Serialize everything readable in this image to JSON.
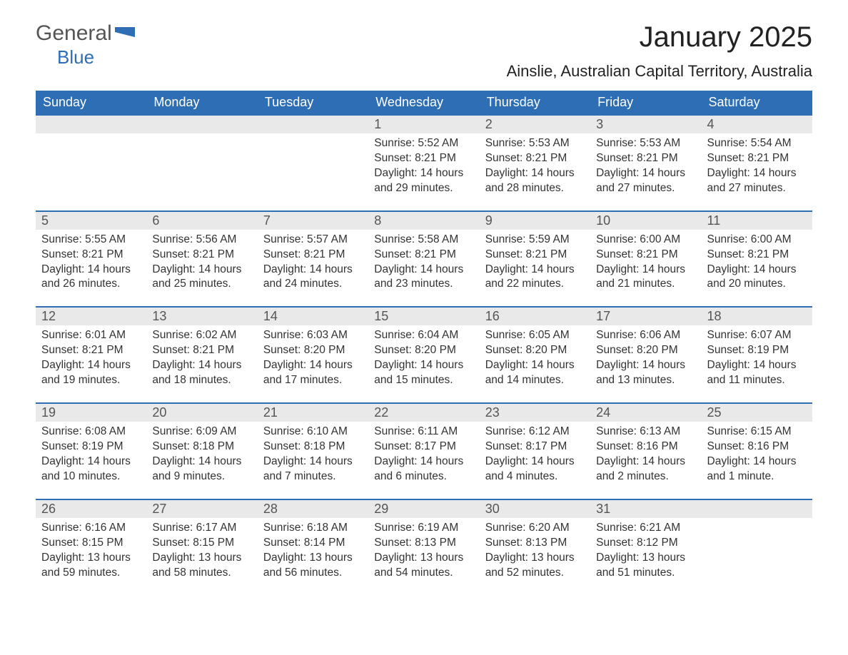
{
  "logo": {
    "word1": "General",
    "word2": "Blue"
  },
  "title": "January 2025",
  "location": "Ainslie, Australian Capital Territory, Australia",
  "colors": {
    "header_bg": "#2d6eb5",
    "header_text": "#ffffff",
    "daynum_bg": "#e9e9e9",
    "row_border": "#2d6eb5",
    "body_text": "#333333",
    "page_bg": "#ffffff",
    "logo_gray": "#555555",
    "logo_blue": "#2d6eb5"
  },
  "typography": {
    "title_fontsize": 40,
    "location_fontsize": 22,
    "dayhead_fontsize": 18,
    "body_fontsize": 15.5
  },
  "weekdays": [
    "Sunday",
    "Monday",
    "Tuesday",
    "Wednesday",
    "Thursday",
    "Friday",
    "Saturday"
  ],
  "labels": {
    "sunrise": "Sunrise:",
    "sunset": "Sunset:",
    "daylight": "Daylight:"
  },
  "days": [
    {
      "n": "",
      "sunrise": "",
      "sunset": "",
      "daylight": "",
      "empty": true
    },
    {
      "n": "",
      "sunrise": "",
      "sunset": "",
      "daylight": "",
      "empty": true
    },
    {
      "n": "",
      "sunrise": "",
      "sunset": "",
      "daylight": "",
      "empty": true
    },
    {
      "n": "1",
      "sunrise": "5:52 AM",
      "sunset": "8:21 PM",
      "daylight": "14 hours and 29 minutes."
    },
    {
      "n": "2",
      "sunrise": "5:53 AM",
      "sunset": "8:21 PM",
      "daylight": "14 hours and 28 minutes."
    },
    {
      "n": "3",
      "sunrise": "5:53 AM",
      "sunset": "8:21 PM",
      "daylight": "14 hours and 27 minutes."
    },
    {
      "n": "4",
      "sunrise": "5:54 AM",
      "sunset": "8:21 PM",
      "daylight": "14 hours and 27 minutes."
    },
    {
      "n": "5",
      "sunrise": "5:55 AM",
      "sunset": "8:21 PM",
      "daylight": "14 hours and 26 minutes."
    },
    {
      "n": "6",
      "sunrise": "5:56 AM",
      "sunset": "8:21 PM",
      "daylight": "14 hours and 25 minutes."
    },
    {
      "n": "7",
      "sunrise": "5:57 AM",
      "sunset": "8:21 PM",
      "daylight": "14 hours and 24 minutes."
    },
    {
      "n": "8",
      "sunrise": "5:58 AM",
      "sunset": "8:21 PM",
      "daylight": "14 hours and 23 minutes."
    },
    {
      "n": "9",
      "sunrise": "5:59 AM",
      "sunset": "8:21 PM",
      "daylight": "14 hours and 22 minutes."
    },
    {
      "n": "10",
      "sunrise": "6:00 AM",
      "sunset": "8:21 PM",
      "daylight": "14 hours and 21 minutes."
    },
    {
      "n": "11",
      "sunrise": "6:00 AM",
      "sunset": "8:21 PM",
      "daylight": "14 hours and 20 minutes."
    },
    {
      "n": "12",
      "sunrise": "6:01 AM",
      "sunset": "8:21 PM",
      "daylight": "14 hours and 19 minutes."
    },
    {
      "n": "13",
      "sunrise": "6:02 AM",
      "sunset": "8:21 PM",
      "daylight": "14 hours and 18 minutes."
    },
    {
      "n": "14",
      "sunrise": "6:03 AM",
      "sunset": "8:20 PM",
      "daylight": "14 hours and 17 minutes."
    },
    {
      "n": "15",
      "sunrise": "6:04 AM",
      "sunset": "8:20 PM",
      "daylight": "14 hours and 15 minutes."
    },
    {
      "n": "16",
      "sunrise": "6:05 AM",
      "sunset": "8:20 PM",
      "daylight": "14 hours and 14 minutes."
    },
    {
      "n": "17",
      "sunrise": "6:06 AM",
      "sunset": "8:20 PM",
      "daylight": "14 hours and 13 minutes."
    },
    {
      "n": "18",
      "sunrise": "6:07 AM",
      "sunset": "8:19 PM",
      "daylight": "14 hours and 11 minutes."
    },
    {
      "n": "19",
      "sunrise": "6:08 AM",
      "sunset": "8:19 PM",
      "daylight": "14 hours and 10 minutes."
    },
    {
      "n": "20",
      "sunrise": "6:09 AM",
      "sunset": "8:18 PM",
      "daylight": "14 hours and 9 minutes."
    },
    {
      "n": "21",
      "sunrise": "6:10 AM",
      "sunset": "8:18 PM",
      "daylight": "14 hours and 7 minutes."
    },
    {
      "n": "22",
      "sunrise": "6:11 AM",
      "sunset": "8:17 PM",
      "daylight": "14 hours and 6 minutes."
    },
    {
      "n": "23",
      "sunrise": "6:12 AM",
      "sunset": "8:17 PM",
      "daylight": "14 hours and 4 minutes."
    },
    {
      "n": "24",
      "sunrise": "6:13 AM",
      "sunset": "8:16 PM",
      "daylight": "14 hours and 2 minutes."
    },
    {
      "n": "25",
      "sunrise": "6:15 AM",
      "sunset": "8:16 PM",
      "daylight": "14 hours and 1 minute."
    },
    {
      "n": "26",
      "sunrise": "6:16 AM",
      "sunset": "8:15 PM",
      "daylight": "13 hours and 59 minutes."
    },
    {
      "n": "27",
      "sunrise": "6:17 AM",
      "sunset": "8:15 PM",
      "daylight": "13 hours and 58 minutes."
    },
    {
      "n": "28",
      "sunrise": "6:18 AM",
      "sunset": "8:14 PM",
      "daylight": "13 hours and 56 minutes."
    },
    {
      "n": "29",
      "sunrise": "6:19 AM",
      "sunset": "8:13 PM",
      "daylight": "13 hours and 54 minutes."
    },
    {
      "n": "30",
      "sunrise": "6:20 AM",
      "sunset": "8:13 PM",
      "daylight": "13 hours and 52 minutes."
    },
    {
      "n": "31",
      "sunrise": "6:21 AM",
      "sunset": "8:12 PM",
      "daylight": "13 hours and 51 minutes."
    },
    {
      "n": "",
      "sunrise": "",
      "sunset": "",
      "daylight": "",
      "empty": true
    }
  ]
}
